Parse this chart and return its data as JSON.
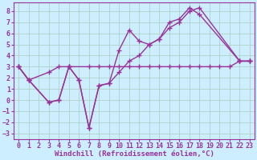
{
  "background_color": "#cceeff",
  "grid_color": "#aaccbb",
  "line_color": "#993399",
  "marker": "+",
  "markersize": 5,
  "linewidth": 1.0,
  "xlabel": "Windchill (Refroidissement éolien,°C)",
  "xlabel_fontsize": 6.5,
  "tick_fontsize": 6,
  "xlim": [
    -0.5,
    23.5
  ],
  "ylim": [
    -3.5,
    8.8
  ],
  "yticks": [
    -3,
    -2,
    -1,
    0,
    1,
    2,
    3,
    4,
    5,
    6,
    7,
    8
  ],
  "xticks": [
    0,
    1,
    2,
    3,
    4,
    5,
    6,
    7,
    8,
    9,
    10,
    11,
    12,
    13,
    14,
    15,
    16,
    17,
    18,
    19,
    20,
    21,
    22,
    23
  ],
  "line1_x": [
    0,
    1,
    3,
    4,
    5,
    7,
    8,
    9,
    10,
    11,
    12,
    13,
    14,
    15,
    16,
    17,
    18,
    19,
    20,
    21,
    22,
    23
  ],
  "line1_y": [
    3.0,
    1.8,
    2.5,
    3.0,
    3.0,
    3.0,
    3.0,
    3.0,
    3.0,
    3.0,
    3.0,
    3.0,
    3.0,
    3.0,
    3.0,
    3.0,
    3.0,
    3.0,
    3.0,
    3.0,
    3.5,
    3.5
  ],
  "line2_x": [
    0,
    1,
    3,
    4,
    5,
    6,
    7,
    8,
    9,
    10,
    11,
    12,
    13,
    14,
    15,
    16,
    17,
    18,
    22,
    23
  ],
  "line2_y": [
    3.0,
    1.8,
    -0.2,
    0.0,
    3.0,
    1.8,
    -2.5,
    1.3,
    1.5,
    4.5,
    6.3,
    5.3,
    5.0,
    5.5,
    7.0,
    7.3,
    8.3,
    7.7,
    3.5,
    3.5
  ],
  "line3_x": [
    0,
    1,
    3,
    4,
    5,
    6,
    7,
    8,
    9,
    10,
    11,
    12,
    13,
    14,
    15,
    16,
    17,
    18,
    22,
    23
  ],
  "line3_y": [
    3.0,
    1.8,
    -0.2,
    0.0,
    3.0,
    1.8,
    -2.5,
    1.3,
    1.5,
    2.5,
    3.5,
    4.0,
    5.0,
    5.5,
    6.5,
    7.0,
    8.0,
    8.3,
    3.5,
    3.5
  ]
}
